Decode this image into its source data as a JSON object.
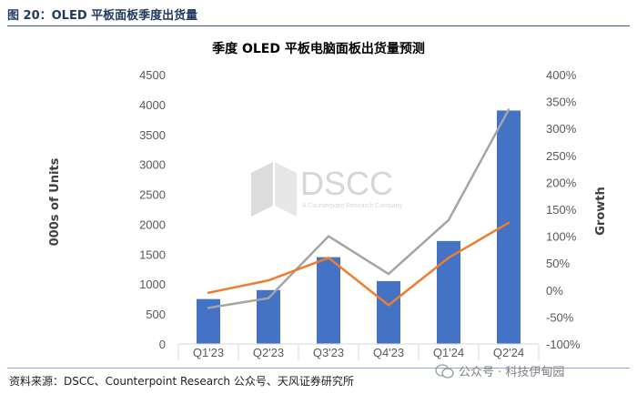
{
  "figure_title": "图 20：OLED 平板面板季度出货量",
  "source_note": "资料来源：DSCC、Counterpoint Research 公众号、天风证券研究所",
  "watermark_text": "公众号 · 科技伊甸园",
  "logo_text": "DSCC",
  "logo_subtext": "A Counterpoint Research Company",
  "colors": {
    "bar": "#4472c4",
    "orange": "#ed7d31",
    "gray": "#a5a5a5",
    "title_blue": "#1f3a5f"
  },
  "chart_data": {
    "type": "bar",
    "title": "季度 OLED 平板电脑面板出货量预测",
    "categories": [
      "Q1'23",
      "Q2'23",
      "Q3'23",
      "Q4'23",
      "Q1'24",
      "Q2'24"
    ],
    "ylabel": "000s of Units",
    "y2label": "Growth",
    "ylim": [
      0,
      4500
    ],
    "yticks": [
      "0",
      "500",
      "1000",
      "1500",
      "2000",
      "2500",
      "3000",
      "3500",
      "4000",
      "4500"
    ],
    "y2lim": [
      -100,
      400
    ],
    "y2ticks": [
      "-100%",
      "-50%",
      "0%",
      "50%",
      "100%",
      "150%",
      "200%",
      "250%",
      "300%",
      "350%",
      "400%"
    ],
    "grid": false,
    "legend": "none",
    "series": [
      {
        "type": "bar",
        "axis": "left",
        "values": [
          750,
          900,
          1450,
          1050,
          1720,
          3900
        ]
      },
      {
        "type": "line",
        "axis": "right",
        "color": "orange",
        "values": [
          -5,
          18,
          60,
          -28,
          60,
          125
        ]
      },
      {
        "type": "line",
        "axis": "right",
        "color": "gray",
        "values": [
          -33,
          -15,
          100,
          30,
          130,
          335
        ]
      }
    ]
  }
}
